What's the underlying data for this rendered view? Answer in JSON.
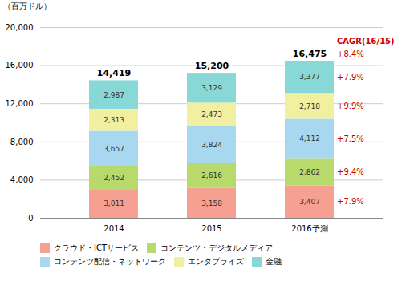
{
  "chart_data": {
    "type": "bar",
    "stacked": true,
    "data_labels": true,
    "grid": true,
    "legend": "bottom",
    "ylabel": "（百万ドル）",
    "categories": [
      "2014",
      "2015",
      "2016予測"
    ],
    "series": [
      {
        "name": "クラウド・ICTサービス",
        "color": "#f5a090",
        "values": [
          3011,
          3158,
          3407
        ],
        "value_labels": [
          "3,011",
          "3,158",
          "3,407"
        ],
        "cagr": "+7.9%"
      },
      {
        "name": "コンテンツ・デジタルメディア",
        "color": "#b8d96c",
        "values": [
          2452,
          2616,
          2862
        ],
        "value_labels": [
          "2,452",
          "2,616",
          "2,862"
        ],
        "cagr": "+9.4%"
      },
      {
        "name": "コンテンツ配信・ネットワーク",
        "color": "#a8d8f0",
        "values": [
          3657,
          3824,
          4112
        ],
        "value_labels": [
          "3,657",
          "3,824",
          "4,112"
        ],
        "cagr": "+7.5%"
      },
      {
        "name": "エンタプライズ",
        "color": "#f0f0a0",
        "values": [
          2313,
          2473,
          2718
        ],
        "value_labels": [
          "2,313",
          "2,473",
          "2,718"
        ],
        "cagr": "+9.9%"
      },
      {
        "name": "金融",
        "color": "#88d8d8",
        "values": [
          2987,
          3129,
          3377
        ],
        "value_labels": [
          "2,987",
          "3,129",
          "3,377"
        ],
        "cagr": "+7.9%"
      }
    ],
    "totals": [
      14419,
      15200,
      16475
    ],
    "total_labels": [
      "14,419",
      "15,200",
      "16,475"
    ],
    "annotations": {
      "title": "CAGR(16/15)",
      "total": "+8.4%",
      "color": "#cc0000"
    },
    "ylim": [
      0,
      20000
    ],
    "yticks": [
      0,
      {
        "value": 4000,
        "label": "4,000"
      },
      {
        "value": 8000,
        "label": "8,000"
      },
      {
        "value": 12000,
        "label": "12,000"
      },
      {
        "value": 16000,
        "label": "16,000"
      },
      {
        "value": 20000,
        "label": "20,000"
      }
    ]
  }
}
